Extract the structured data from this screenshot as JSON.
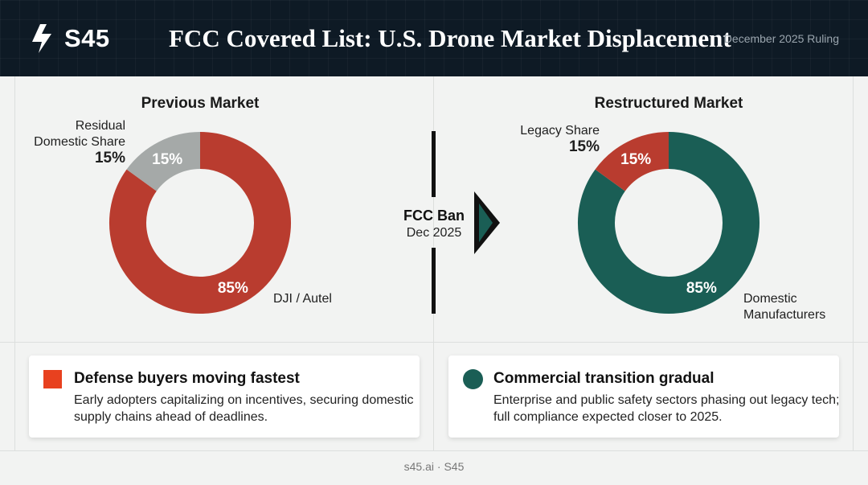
{
  "header": {
    "logo_text": "S45",
    "title": "FCC Covered List: U.S. Drone Market Displacement",
    "subtitle": "December 2025 Ruling"
  },
  "colors": {
    "header_bg": "#0e1a25",
    "red": "#b93c2f",
    "gray": "#a5a9a8",
    "teal": "#1a5e55",
    "accent_red": "#e8411f"
  },
  "chart_data": [
    {
      "type": "pie",
      "style": "donut",
      "title": "Previous Market",
      "categories": [
        "DJI / Autel",
        "Residual Domestic Share"
      ],
      "values": [
        85,
        15
      ],
      "value_labels": [
        "85%",
        "15%"
      ],
      "colors": [
        "#b93c2f",
        "#a5a9a8"
      ],
      "callouts": [
        {
          "label": "DJI / Autel",
          "value": ""
        },
        {
          "label": "Residual Domestic Share",
          "label_lines": [
            "Residual",
            "Domestic Share"
          ],
          "value": "15%"
        }
      ]
    },
    {
      "type": "pie",
      "style": "donut",
      "title": "Restructured Market",
      "categories": [
        "Domestic Manufacturers",
        "Legacy Share"
      ],
      "values": [
        85,
        15
      ],
      "value_labels": [
        "85%",
        "15%"
      ],
      "colors": [
        "#1a5e55",
        "#b93c2f"
      ],
      "callouts": [
        {
          "label": "Domestic Manufacturers",
          "label_lines": [
            "Domestic",
            "Manufacturers"
          ],
          "value": ""
        },
        {
          "label": "Legacy Share",
          "value": "15%"
        }
      ]
    }
  ],
  "transition": {
    "label": "FCC Ban",
    "sublabel": "Dec 2025"
  },
  "cards": [
    {
      "heading": "Defense buyers moving fastest",
      "body": "Early adopters capitalizing on incentives, securing domestic supply chains ahead of deadlines."
    },
    {
      "heading": "Commercial transition gradual",
      "body": "Enterprise and public safety sectors phasing out legacy tech; full compliance expected closer to 2025."
    }
  ],
  "footer": "s45.ai · S45"
}
